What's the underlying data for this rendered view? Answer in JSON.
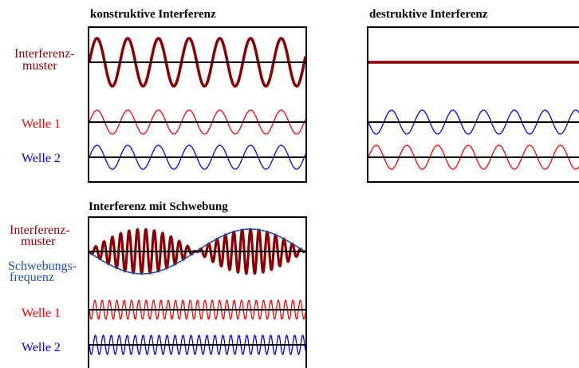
{
  "panels": {
    "constructive": {
      "title": "konstruktive Interferenz",
      "labels": {
        "pattern_line1": "Interferenz-",
        "pattern_line2": "muster",
        "wave1": "Welle 1",
        "wave2": "Welle 2"
      }
    },
    "destructive": {
      "title": "destruktive Interferenz"
    },
    "beat": {
      "title": "Interferenz mit Schwebung",
      "labels": {
        "pattern_line1": "Interferenz-",
        "pattern_line2": "muster",
        "beat_line1": "Schwebungs-",
        "beat_line2": "frequenz",
        "wave1": "Welle 1",
        "wave2": "Welle 2"
      }
    }
  },
  "colors": {
    "pattern": "#8b0000",
    "wave1": "#ff0000",
    "wave2": "#0000ff",
    "beat_envelope": "#1f4fa0",
    "axis": "#000000",
    "label_pattern": "#8b0000",
    "label_wave1": "#ff0000",
    "label_wave2": "#0000ff",
    "label_beat": "#1f4fa0"
  }
}
